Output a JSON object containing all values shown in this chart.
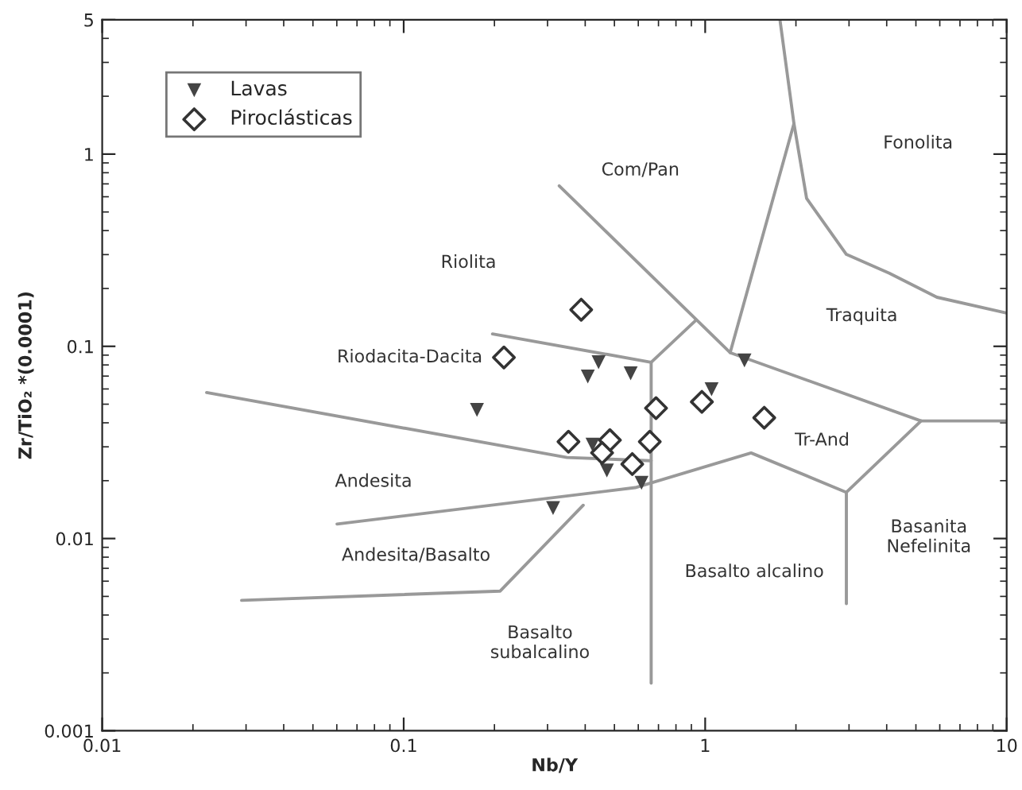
{
  "chart_data": {
    "type": "scatter",
    "xlabel": "Nb/Y",
    "ylabel": "Zr/TiO₂ *(0.0001)",
    "log": "xy",
    "legend": "top left",
    "grid": false,
    "xlim": [
      0.01,
      10
    ],
    "xticks": [
      0.01,
      0.1,
      1,
      10
    ],
    "ylim": [
      0.001,
      5
    ],
    "yticks": [
      0.001,
      0.01,
      0.1,
      1,
      5
    ],
    "series": [
      {
        "name": "Lavas",
        "marker": "triangle",
        "color": "#444444",
        "x": [
          0.443,
          0.408,
          0.566,
          1.35,
          1.05,
          0.175,
          0.423,
          0.472,
          0.615,
          0.313
        ],
        "values": [
          0.0826,
          0.0697,
          0.0724,
          0.0844,
          0.0598,
          0.0467,
          0.0308,
          0.0226,
          0.0195,
          0.0144
        ]
      },
      {
        "name": "Piroclásticas",
        "marker": "diamond",
        "color": "#333333",
        "x": [
          0.388,
          0.215,
          0.687,
          0.975,
          1.57,
          0.352,
          0.483,
          0.455,
          0.655,
          0.573
        ],
        "values": [
          0.155,
          0.0875,
          0.0477,
          0.0514,
          0.0425,
          0.0319,
          0.0325,
          0.0279,
          0.0319,
          0.0244
        ]
      },
      {
        "type": "line",
        "color": "#999999",
        "x": [
          0.0222,
          0.348,
          0.662
        ],
        "values": [
          0.0575,
          0.0264,
          0.0254
        ]
      },
      {
        "type": "line",
        "color": "#999999",
        "x": [
          0.197,
          0.662,
          0.929
        ],
        "values": [
          0.116,
          0.0826,
          0.136
        ]
      },
      {
        "type": "line",
        "color": "#999999",
        "x": [
          0.328,
          1.21,
          5.2,
          10
        ],
        "values": [
          0.684,
          0.0927,
          0.0409,
          0.0409
        ]
      },
      {
        "type": "line",
        "color": "#999999",
        "x": [
          1.21,
          1.97,
          1.77
        ],
        "values": [
          0.0927,
          1.44,
          5
        ]
      },
      {
        "type": "line",
        "color": "#999999",
        "x": [
          1.97,
          2.17,
          2.94,
          4.08,
          5.87,
          10
        ],
        "values": [
          1.44,
          0.588,
          0.301,
          0.24,
          0.18,
          0.149
        ]
      },
      {
        "type": "line",
        "color": "#999999",
        "x": [
          0.0601,
          0.586,
          1.42,
          2.94,
          5.2
        ],
        "values": [
          0.0119,
          0.0184,
          0.0279,
          0.0174,
          0.0409
        ]
      },
      {
        "type": "line",
        "color": "#999999",
        "x": [
          2.94,
          2.94
        ],
        "values": [
          0.0174,
          0.00458
        ]
      },
      {
        "type": "line",
        "color": "#999999",
        "x": [
          0.029,
          0.209,
          0.394
        ],
        "values": [
          0.00477,
          0.00533,
          0.0149
        ]
      },
      {
        "type": "line",
        "color": "#999999",
        "x": [
          0.662,
          0.662
        ],
        "values": [
          0.0826,
          0.00177
        ]
      }
    ],
    "annotations": [
      "Riolita",
      "Riodacita-Dacita",
      "Com/Pan",
      "Fonolita",
      "Traquita",
      "Tr-And",
      "Andesita",
      "Andesita/Basalto",
      "Basalto alcalino",
      "Basanita\nNefelinita",
      "Basalto\nsubalcalino"
    ]
  }
}
